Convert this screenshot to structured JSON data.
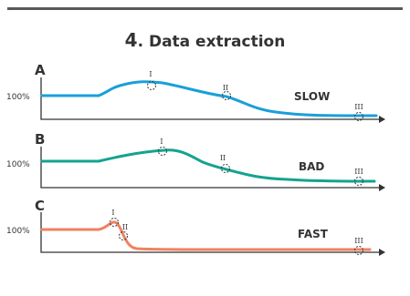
{
  "figure": {
    "number": "4",
    "title": ". Data extraction"
  },
  "panels": [
    {
      "id": "A",
      "y_ref_label": "100%",
      "speed_label": "SLOW",
      "color": "#1a9fd9",
      "markers": [
        "I",
        "II",
        "III"
      ]
    },
    {
      "id": "B",
      "y_ref_label": "100%",
      "speed_label": "BAD",
      "color": "#14a38f",
      "markers": [
        "I",
        "II",
        "III"
      ]
    },
    {
      "id": "C",
      "y_ref_label": "100%",
      "speed_label": "FAST",
      "color": "#ef8260",
      "markers": [
        "I",
        "II",
        "III"
      ]
    }
  ],
  "colors": {
    "axis": "#333333",
    "rule": "#595959"
  }
}
